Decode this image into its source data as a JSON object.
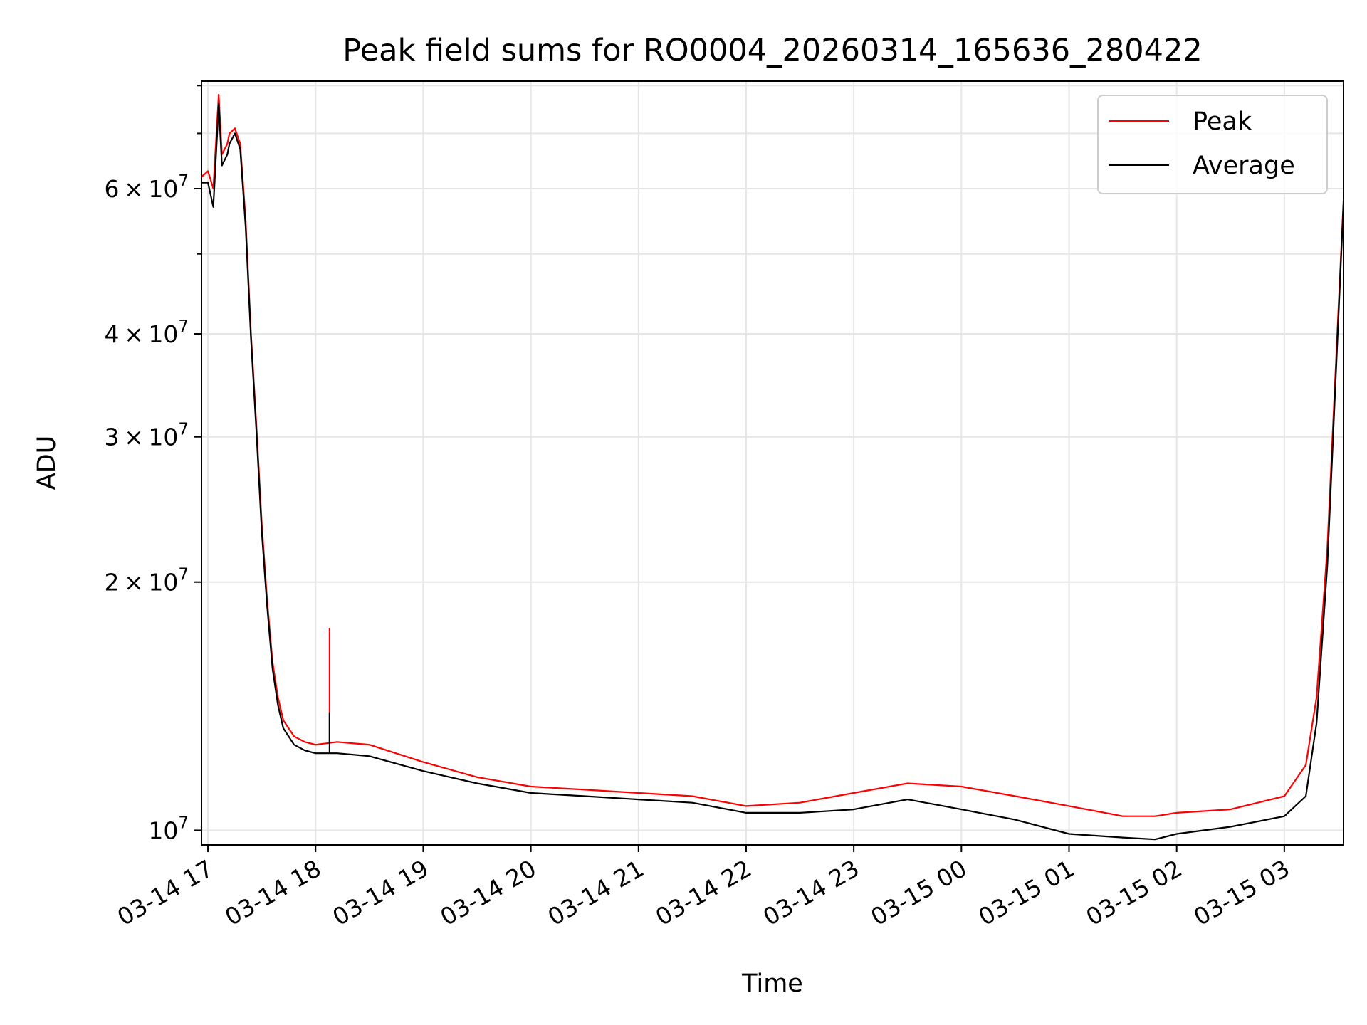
{
  "chart_data": {
    "type": "line",
    "title": "Peak field sums for RO0004_20260314_165636_280422",
    "xlabel": "Time",
    "ylabel": "ADU",
    "yscale": "log",
    "ylim": [
      9600000,
      81000000
    ],
    "xlim_hours": [
      16.94,
      27.55
    ],
    "grid": true,
    "legend_position": "top-right",
    "x_tick_labels": [
      "03-14 17",
      "03-14 18",
      "03-14 19",
      "03-14 20",
      "03-14 21",
      "03-14 22",
      "03-14 23",
      "03-15 00",
      "03-15 01",
      "03-15 02",
      "03-15 03"
    ],
    "x_tick_hours": [
      17,
      18,
      19,
      20,
      21,
      22,
      23,
      24,
      25,
      26,
      27
    ],
    "y_ticks": [
      {
        "value": 10000000,
        "mantissa": "",
        "base": "10",
        "exp": "7"
      },
      {
        "value": 20000000,
        "mantissa": "2",
        "base": "10",
        "exp": "7"
      },
      {
        "value": 30000000,
        "mantissa": "3",
        "base": "10",
        "exp": "7"
      },
      {
        "value": 40000000,
        "mantissa": "4",
        "base": "10",
        "exp": "7"
      },
      {
        "value": 60000000,
        "mantissa": "6",
        "base": "10",
        "exp": "7"
      }
    ],
    "y_minor_ticks": [
      50000000,
      70000000,
      80000000
    ],
    "series": [
      {
        "name": "Peak",
        "color": "#ff0000",
        "x_hours": [
          16.94,
          17.0,
          17.05,
          17.1,
          17.13,
          17.18,
          17.2,
          17.25,
          17.3,
          17.35,
          17.4,
          17.45,
          17.5,
          17.55,
          17.6,
          17.65,
          17.7,
          17.8,
          17.9,
          18.0,
          18.2,
          18.5,
          19.0,
          19.5,
          20.0,
          20.5,
          21.0,
          21.5,
          22.0,
          22.5,
          23.0,
          23.5,
          24.0,
          24.5,
          25.0,
          25.5,
          25.8,
          26.0,
          26.5,
          27.0,
          27.2,
          27.3,
          27.4,
          27.5,
          27.55
        ],
        "values": [
          62000000,
          63000000,
          60000000,
          78000000,
          66000000,
          68000000,
          70000000,
          71000000,
          68000000,
          55000000,
          40000000,
          31000000,
          23500000,
          19000000,
          16000000,
          14500000,
          13600000,
          13000000,
          12800000,
          12700000,
          12800000,
          12700000,
          12100000,
          11600000,
          11300000,
          11200000,
          11100000,
          11000000,
          10700000,
          10800000,
          11100000,
          11400000,
          11300000,
          11000000,
          10700000,
          10400000,
          10400000,
          10500000,
          10600000,
          11000000,
          12000000,
          14500000,
          22000000,
          42000000,
          58000000
        ]
      },
      {
        "name": "Average",
        "color": "#000000",
        "x_hours": [
          16.94,
          17.0,
          17.05,
          17.1,
          17.13,
          17.18,
          17.2,
          17.25,
          17.3,
          17.35,
          17.4,
          17.45,
          17.5,
          17.55,
          17.6,
          17.65,
          17.7,
          17.8,
          17.9,
          18.0,
          18.2,
          18.5,
          19.0,
          19.5,
          20.0,
          20.5,
          21.0,
          21.5,
          22.0,
          22.5,
          23.0,
          23.5,
          24.0,
          24.5,
          25.0,
          25.5,
          25.8,
          26.0,
          26.5,
          27.0,
          27.2,
          27.3,
          27.4,
          27.5,
          27.55
        ],
        "values": [
          61000000,
          61000000,
          57000000,
          76000000,
          64000000,
          66000000,
          68000000,
          70000000,
          67000000,
          54000000,
          39500000,
          30500000,
          23000000,
          18700000,
          15700000,
          14200000,
          13300000,
          12700000,
          12500000,
          12400000,
          12400000,
          12300000,
          11800000,
          11400000,
          11100000,
          11000000,
          10900000,
          10800000,
          10500000,
          10500000,
          10600000,
          10900000,
          10600000,
          10300000,
          9900000,
          9800000,
          9750000,
          9900000,
          10100000,
          10400000,
          11000000,
          13500000,
          21000000,
          41000000,
          57500000
        ]
      }
    ],
    "annotations": [
      {
        "series": "Peak",
        "x_hour": 18.13,
        "value": 17600000,
        "note": "narrow spike"
      },
      {
        "series": "Average",
        "x_hour": 18.13,
        "value": 13900000,
        "note": "narrow spike"
      }
    ]
  }
}
